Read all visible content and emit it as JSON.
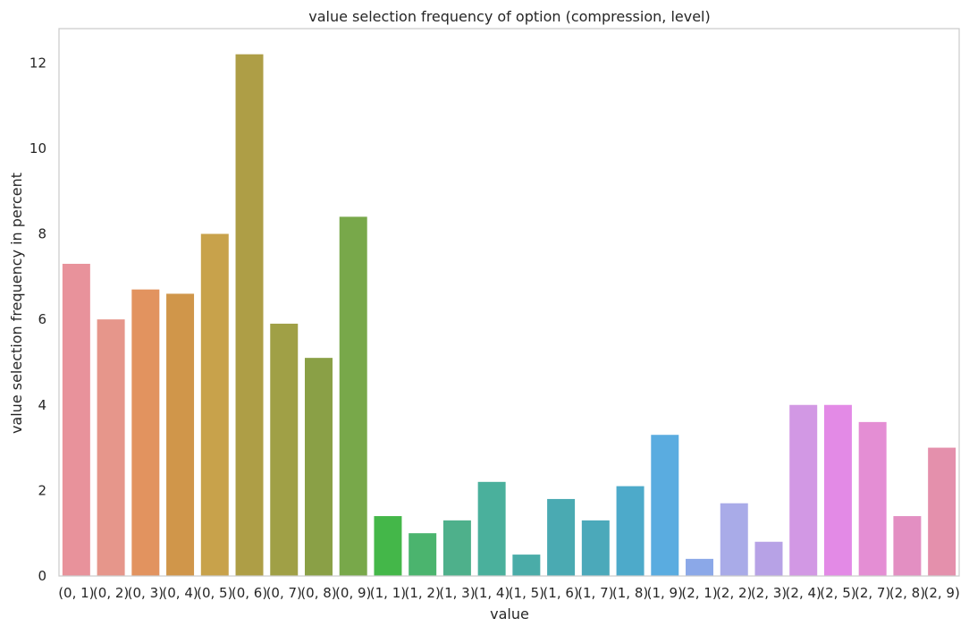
{
  "chart_data": {
    "type": "bar",
    "title": "value selection frequency of option (compression, level)",
    "xlabel": "value",
    "ylabel": "value selection frequency in percent",
    "categories": [
      "(0, 1)",
      "(0, 2)",
      "(0, 3)",
      "(0, 4)",
      "(0, 5)",
      "(0, 6)",
      "(0, 7)",
      "(0, 8)",
      "(0, 9)",
      "(1, 1)",
      "(1, 2)",
      "(1, 3)",
      "(1, 4)",
      "(1, 5)",
      "(1, 6)",
      "(1, 7)",
      "(1, 8)",
      "(1, 9)",
      "(2, 1)",
      "(2, 2)",
      "(2, 3)",
      "(2, 4)",
      "(2, 5)",
      "(2, 7)",
      "(2, 8)",
      "(2, 9)"
    ],
    "values": [
      7.3,
      6.0,
      6.7,
      6.6,
      8.0,
      12.2,
      5.9,
      5.1,
      8.4,
      1.4,
      1.0,
      1.3,
      2.2,
      0.5,
      1.8,
      1.3,
      2.1,
      3.3,
      0.4,
      1.7,
      0.8,
      4.0,
      4.0,
      3.6,
      1.4,
      3.0
    ],
    "colors": [
      "#e8929b",
      "#e6968b",
      "#e2935f",
      "#d0964a",
      "#c8a24b",
      "#ae9e46",
      "#a0a046",
      "#8aa046",
      "#78a84a",
      "#44b749",
      "#4bb46e",
      "#4eb08b",
      "#4ab09c",
      "#4aaca8",
      "#4aaab2",
      "#4ba9ba",
      "#4daaca",
      "#5aace0",
      "#8ba8e8",
      "#a9abe8",
      "#b7a2e6",
      "#d298e4",
      "#e38ae6",
      "#e48ed4",
      "#e38fc2",
      "#e490ac"
    ],
    "ylim": [
      0,
      12.8
    ],
    "yticks": [
      0,
      2,
      4,
      6,
      8,
      10,
      12
    ],
    "grid": false,
    "legend": "none"
  }
}
